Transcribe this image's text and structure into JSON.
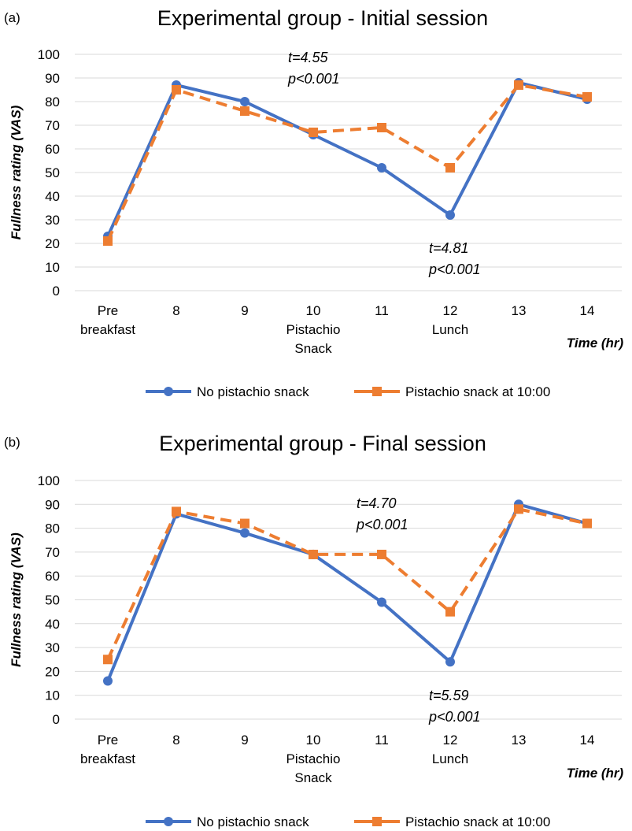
{
  "chart_data": [
    {
      "type": "line",
      "panel": "(a)",
      "title": "Experimental group - Initial session",
      "xlabel": "Time (hr)",
      "ylabel": "Fullness rating (VAS)",
      "ylim": [
        0,
        100
      ],
      "yticks": [
        0,
        10,
        20,
        30,
        40,
        50,
        60,
        70,
        80,
        90,
        100
      ],
      "grid": true,
      "legend": "bottom",
      "categories": [
        [
          "Pre",
          "breakfast"
        ],
        [
          "8"
        ],
        [
          "9"
        ],
        [
          "10",
          "Pistachio",
          "Snack"
        ],
        [
          "11"
        ],
        [
          "12",
          "Lunch"
        ],
        [
          "13"
        ],
        [
          "14"
        ]
      ],
      "series": [
        {
          "name": "No pistachio snack",
          "color": "#4472C4",
          "marker": "circle",
          "dash": "solid",
          "values": [
            23,
            87,
            80,
            66,
            52,
            32,
            88,
            81
          ]
        },
        {
          "name": "Pistachio snack at 10:00",
          "color": "#ED7D31",
          "marker": "square",
          "dash": "dashed",
          "values": [
            21,
            85,
            76,
            67,
            69,
            52,
            87,
            82
          ]
        }
      ],
      "annotations": [
        {
          "lines": [
            "t=4.55",
            "p<0.001"
          ]
        },
        {
          "lines": [
            "t=4.81",
            "p<0.001"
          ]
        }
      ]
    },
    {
      "type": "line",
      "panel": "(b)",
      "title": "Experimental group - Final session",
      "xlabel": "Time (hr)",
      "ylabel": "Fullness rating (VAS)",
      "ylim": [
        0,
        100
      ],
      "yticks": [
        0,
        10,
        20,
        30,
        40,
        50,
        60,
        70,
        80,
        90,
        100
      ],
      "grid": true,
      "legend": "bottom",
      "categories": [
        [
          "Pre",
          "breakfast"
        ],
        [
          "8"
        ],
        [
          "9"
        ],
        [
          "10",
          "Pistachio",
          "Snack"
        ],
        [
          "11"
        ],
        [
          "12",
          "Lunch"
        ],
        [
          "13"
        ],
        [
          "14"
        ]
      ],
      "series": [
        {
          "name": "No pistachio snack",
          "color": "#4472C4",
          "marker": "circle",
          "dash": "solid",
          "values": [
            16,
            86,
            78,
            69,
            49,
            24,
            90,
            82
          ]
        },
        {
          "name": "Pistachio snack at 10:00",
          "color": "#ED7D31",
          "marker": "square",
          "dash": "dashed",
          "values": [
            25,
            87,
            82,
            69,
            69,
            45,
            88,
            82
          ]
        }
      ],
      "annotations": [
        {
          "lines": [
            "t=4.70",
            "p<0.001"
          ]
        },
        {
          "lines": [
            "t=5.59",
            "p<0.001"
          ]
        }
      ]
    }
  ]
}
